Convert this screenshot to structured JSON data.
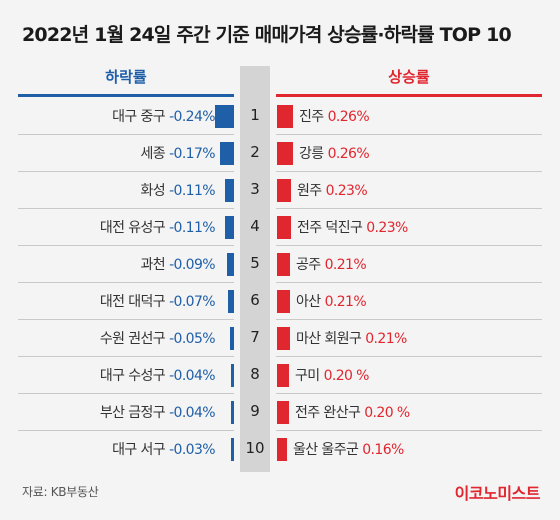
{
  "title": "2022년 1월 24일 주간 기준 매매가격 상승률·하락률 TOP 10",
  "source": "자료: KB부동산",
  "brand": "이코노미스트",
  "colors": {
    "decline": "#1f5fa8",
    "rise": "#e0262f",
    "rank_band": "#d4d4d4"
  },
  "chart_data": {
    "type": "bar",
    "title": "2022년 1월 24일 주간 기준 매매가격 상승률·하락률 TOP 10",
    "ranks": [
      "1",
      "2",
      "3",
      "4",
      "5",
      "6",
      "7",
      "8",
      "9",
      "10"
    ],
    "decline": {
      "header": "하락률",
      "names": [
        "대구 중구",
        "세종",
        "화성",
        "대전 유성구",
        "과천",
        "대전 대덕구",
        "수원 권선구",
        "대구 수성구",
        "부산 금정구",
        "대구 서구"
      ],
      "labels": [
        "-0.24%",
        "-0.17%",
        "-0.11%",
        "-0.11%",
        "-0.09%",
        "-0.07%",
        "-0.05%",
        "-0.04%",
        "-0.04%",
        "-0.03%"
      ],
      "values": [
        -0.24,
        -0.17,
        -0.11,
        -0.11,
        -0.09,
        -0.07,
        -0.05,
        -0.04,
        -0.04,
        -0.03
      ]
    },
    "rise": {
      "header": "상승률",
      "names": [
        "진주",
        "강릉",
        "원주",
        "전주 덕진구",
        "공주",
        "아산",
        "마산 회원구",
        "구미",
        "전주 완산구",
        "울산 울주군"
      ],
      "labels": [
        "0.26%",
        "0.26%",
        "0.23%",
        "0.23%",
        "0.21%",
        "0.21%",
        "0.21%",
        "0.20 %",
        "0.20 %",
        "0.16%"
      ],
      "values": [
        0.26,
        0.26,
        0.23,
        0.23,
        0.21,
        0.21,
        0.21,
        0.2,
        0.2,
        0.16
      ]
    }
  }
}
